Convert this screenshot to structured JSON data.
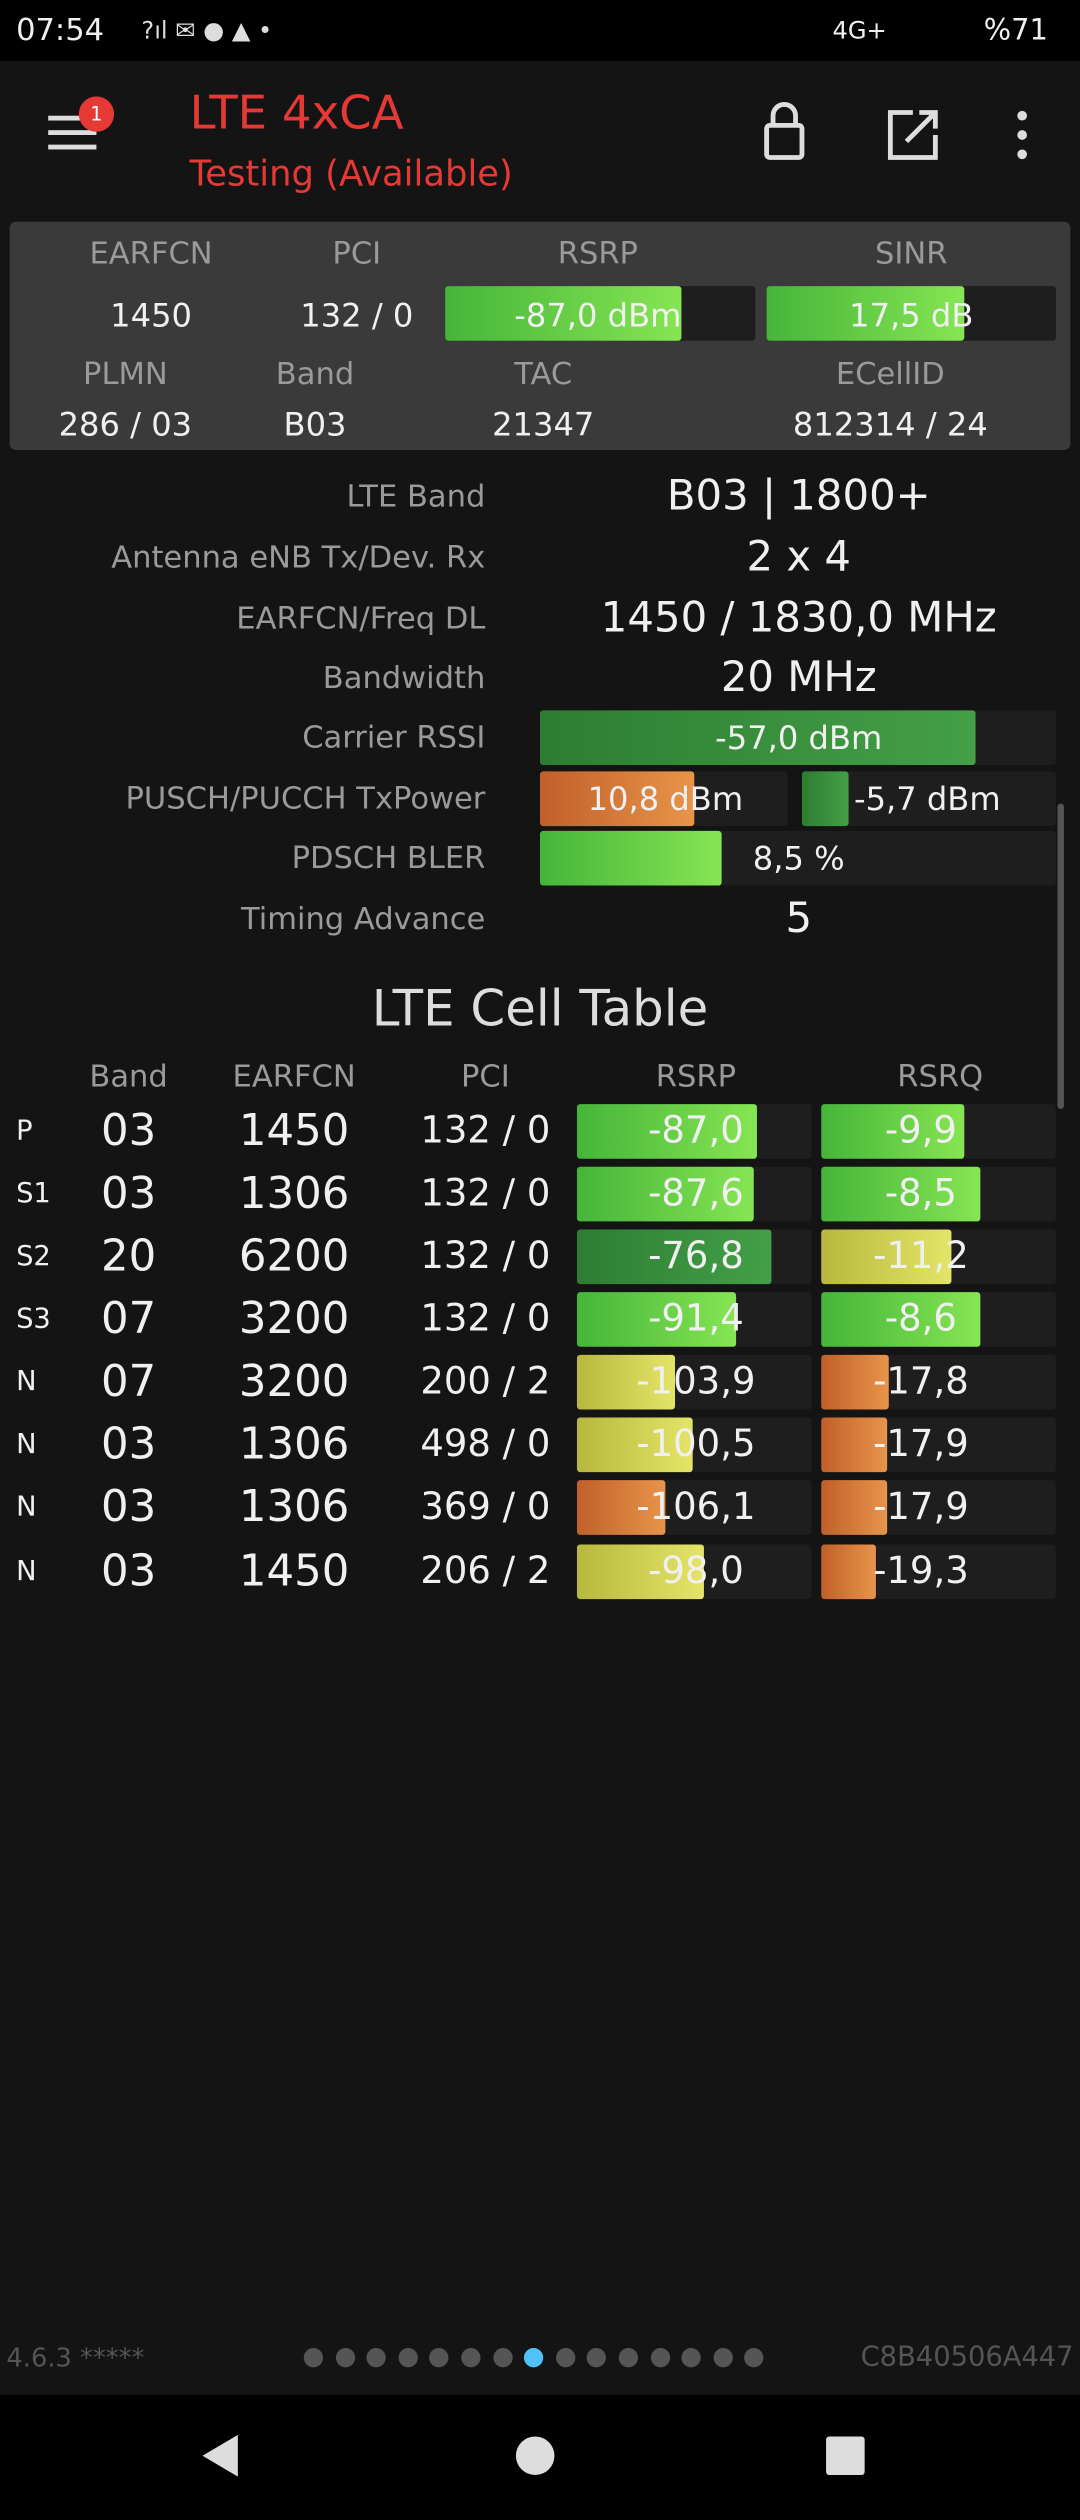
{
  "status_bar": {
    "time": "07:54",
    "network": "4G+",
    "battery": "%71"
  },
  "header": {
    "badge": "1",
    "title": "LTE 4xCA",
    "subtitle": "Testing (Available)"
  },
  "summary": {
    "row1": [
      {
        "label": "EARFCN",
        "value": "1450"
      },
      {
        "label": "PCI",
        "value": "132 / 0"
      },
      {
        "label": "RSRP",
        "value": "-87,0 dBm"
      },
      {
        "label": "SINR",
        "value": "17,5 dB"
      }
    ],
    "row2": [
      {
        "label": "PLMN",
        "value": "286 / 03"
      },
      {
        "label": "Band",
        "value": "B03"
      },
      {
        "label": "TAC",
        "value": "21347"
      },
      {
        "label": "ECellID",
        "value": "812314 / 24"
      }
    ]
  },
  "details": [
    {
      "label": "LTE Band",
      "value": "B03 | 1800+"
    },
    {
      "label": "Antenna eNB Tx/Dev. Rx",
      "value": "2 x 4"
    },
    {
      "label": "EARFCN/Freq DL",
      "value": "1450 / 1830,0 MHz"
    },
    {
      "label": "Bandwidth",
      "value": "20 MHz"
    },
    {
      "label": "Carrier RSSI",
      "value": "-57,0 dBm"
    },
    {
      "label": "PUSCH/PUCCH TxPower",
      "value": "10,8 dBm",
      "value2": "-5,7 dBm"
    },
    {
      "label": "PDSCH BLER",
      "value": "8,5 %"
    },
    {
      "label": "Timing Advance",
      "value": "5"
    }
  ],
  "cell_table": {
    "title": "LTE Cell Table",
    "columns": [
      "Band",
      "EARFCN",
      "PCI",
      "RSRP",
      "RSRQ"
    ],
    "rows": [
      [
        "P",
        "03",
        "1450",
        "132 / 0",
        "-87,0",
        "-9,9"
      ],
      [
        "S1",
        "03",
        "1306",
        "132 / 0",
        "-87,6",
        "-8,5"
      ],
      [
        "S2",
        "20",
        "6200",
        "132 / 0",
        "-76,8",
        "-11,2"
      ],
      [
        "S3",
        "07",
        "3200",
        "132 / 0",
        "-91,4",
        "-8,6"
      ],
      [
        "N",
        "07",
        "3200",
        "200 / 2",
        "-103,9",
        "-17,8"
      ],
      [
        "N",
        "03",
        "1306",
        "498 / 0",
        "-100,5",
        "-17,9"
      ],
      [
        "N",
        "03",
        "1306",
        "369 / 0",
        "-106,1",
        "-17,9"
      ],
      [
        "N",
        "03",
        "1450",
        "206 / 2",
        "-98,0",
        "-19,3"
      ]
    ]
  },
  "footer": {
    "version": "4.6.3 *****",
    "device_id": "C8B40506A447"
  }
}
